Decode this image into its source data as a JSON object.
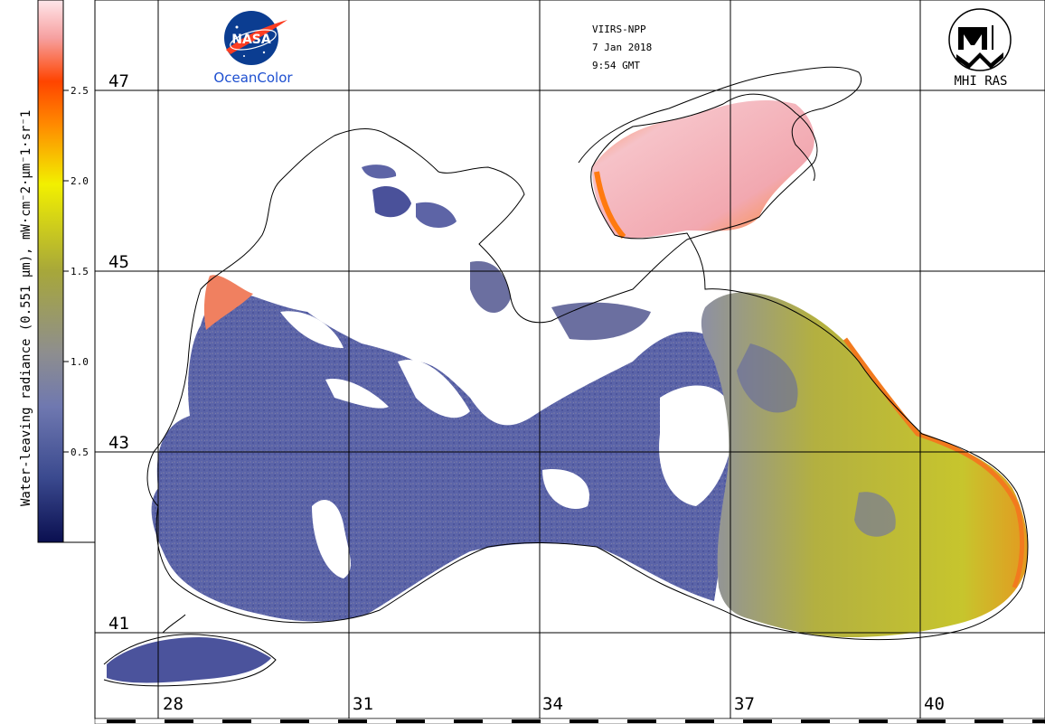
{
  "colorbar": {
    "title": "Water-leaving radiance (0.551 µm), mW·cm⁻2·µm⁻1·sr⁻1",
    "ticks": [
      "0.5",
      "1.0",
      "1.5",
      "2.0",
      "2.5"
    ],
    "colors": [
      "#0a0f50",
      "#3b4a8f",
      "#6f78b0",
      "#8e8e8e",
      "#a7a73a",
      "#f2f000",
      "#ff8a00",
      "#ff4400",
      "#f6a0a0",
      "#ffe6ea"
    ]
  },
  "header": {
    "sensor": "VIIRS-NPP",
    "date": "7 Jan 2018",
    "time": "9:54 GMT"
  },
  "logos": {
    "nasa_text": "NASA",
    "nasa_caption": "OceanColor",
    "mhi_caption": "MHI RAS"
  },
  "grid": {
    "lat_labels": [
      "47",
      "45",
      "43",
      "41"
    ],
    "lon_labels": [
      "28",
      "31",
      "34",
      "37",
      "40"
    ]
  },
  "palette": {
    "land": "#ffffff",
    "cloud": "#ffffff",
    "coast": "#000000",
    "low": "#5a63a6",
    "mid": "#8c8f9a",
    "high": "#b7b436",
    "very_high": "#ff6a00",
    "extreme": "#f7b8bf"
  }
}
